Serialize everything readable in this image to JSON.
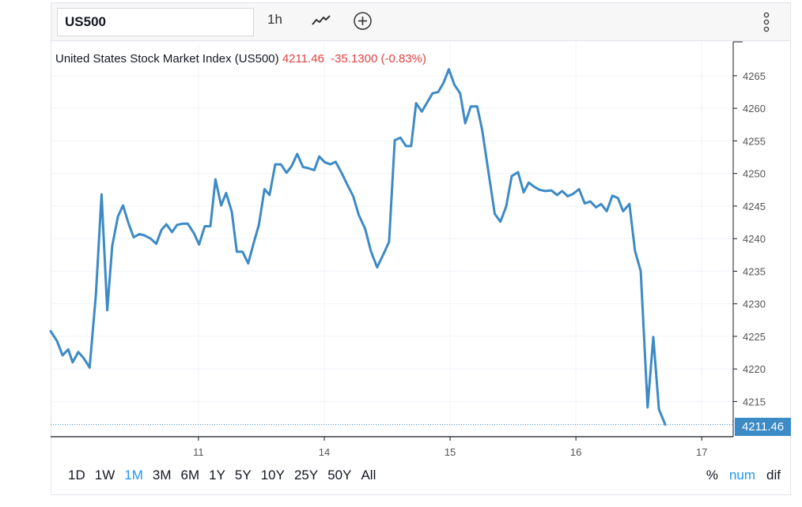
{
  "toolbar": {
    "symbol_value": "US500",
    "interval_label": "1h",
    "chart_type_icon": "line-chart-icon",
    "compare_icon": "plus-circle-icon",
    "menu_icon": "more-vertical-icon"
  },
  "legend": {
    "name": "United States Stock Market Index (US500)",
    "price": "4211.46",
    "change": "-35.1300 (-0.83%)"
  },
  "last_price_label": "4211.46",
  "ranges": [
    "1D",
    "1W",
    "1M",
    "3M",
    "6M",
    "1Y",
    "5Y",
    "10Y",
    "25Y",
    "50Y",
    "All"
  ],
  "active_range": "1M",
  "scales": [
    "%",
    "num",
    "dif"
  ],
  "active_scale": "num",
  "colors": {
    "line": "#3c8ac6",
    "change_negative": "#e0413f",
    "active": "#2196f3",
    "grid": "#f0f3fa"
  },
  "chart_data": {
    "type": "line",
    "title": "United States Stock Market Index (US500)",
    "xlabel": "",
    "ylabel": "",
    "x_ticks": [
      {
        "label": "11",
        "x": 2.35
      },
      {
        "label": "14",
        "x": 4.35
      },
      {
        "label": "15",
        "x": 6.35
      },
      {
        "label": "16",
        "x": 8.35
      },
      {
        "label": "17",
        "x": 10.35
      }
    ],
    "y_ticks": [
      4215,
      4220,
      4225,
      4230,
      4235,
      4240,
      4245,
      4250,
      4255,
      4260,
      4265
    ],
    "ylim": [
      4209.6,
      4270.2
    ],
    "xlim": [
      0,
      10.85
    ],
    "grid": true,
    "series": [
      {
        "values": [
          [
            0.0,
            4225.8
          ],
          [
            0.1,
            4224.3
          ],
          [
            0.19,
            4222.1
          ],
          [
            0.28,
            4223.0
          ],
          [
            0.35,
            4221.0
          ],
          [
            0.44,
            4222.6
          ],
          [
            0.53,
            4221.6
          ],
          [
            0.62,
            4220.2
          ],
          [
            0.72,
            4231.5
          ],
          [
            0.81,
            4246.8
          ],
          [
            0.9,
            4229.0
          ],
          [
            0.98,
            4238.9
          ],
          [
            1.07,
            4243.4
          ],
          [
            1.15,
            4245.1
          ],
          [
            1.24,
            4242.3
          ],
          [
            1.32,
            4240.2
          ],
          [
            1.41,
            4240.7
          ],
          [
            1.49,
            4240.5
          ],
          [
            1.59,
            4240.0
          ],
          [
            1.68,
            4239.2
          ],
          [
            1.76,
            4241.3
          ],
          [
            1.84,
            4242.2
          ],
          [
            1.93,
            4241.0
          ],
          [
            2.01,
            4242.1
          ],
          [
            2.1,
            4242.3
          ],
          [
            2.18,
            4242.3
          ],
          [
            2.28,
            4240.8
          ],
          [
            2.36,
            4239.1
          ],
          [
            2.45,
            4241.9
          ],
          [
            2.54,
            4241.9
          ],
          [
            2.62,
            4249.1
          ],
          [
            2.71,
            4245.1
          ],
          [
            2.79,
            4247.0
          ],
          [
            2.88,
            4244.1
          ],
          [
            2.96,
            4238.0
          ],
          [
            3.05,
            4238.0
          ],
          [
            3.14,
            4236.2
          ],
          [
            3.23,
            4239.4
          ],
          [
            3.31,
            4242.1
          ],
          [
            3.4,
            4247.6
          ],
          [
            3.48,
            4246.7
          ],
          [
            3.57,
            4251.4
          ],
          [
            3.66,
            4251.4
          ],
          [
            3.75,
            4250.1
          ],
          [
            3.83,
            4251.1
          ],
          [
            3.92,
            4253.0
          ],
          [
            4.01,
            4251.0
          ],
          [
            4.1,
            4250.8
          ],
          [
            4.19,
            4250.5
          ],
          [
            4.27,
            4252.6
          ],
          [
            4.36,
            4251.7
          ],
          [
            4.45,
            4251.4
          ],
          [
            4.53,
            4251.8
          ],
          [
            4.63,
            4250.0
          ],
          [
            4.72,
            4248.2
          ],
          [
            4.81,
            4246.5
          ],
          [
            4.9,
            4243.6
          ],
          [
            5.0,
            4241.5
          ],
          [
            5.09,
            4238.1
          ],
          [
            5.19,
            4235.6
          ],
          [
            5.28,
            4237.4
          ],
          [
            5.38,
            4239.5
          ],
          [
            5.47,
            4255.1
          ],
          [
            5.56,
            4255.5
          ],
          [
            5.65,
            4254.2
          ],
          [
            5.73,
            4254.2
          ],
          [
            5.81,
            4260.8
          ],
          [
            5.9,
            4259.5
          ],
          [
            5.98,
            4260.8
          ],
          [
            6.07,
            4262.3
          ],
          [
            6.16,
            4262.5
          ],
          [
            6.25,
            4264.0
          ],
          [
            6.33,
            4266.0
          ],
          [
            6.42,
            4263.6
          ],
          [
            6.51,
            4262.3
          ],
          [
            6.59,
            4257.7
          ],
          [
            6.68,
            4260.3
          ],
          [
            6.78,
            4260.3
          ],
          [
            6.86,
            4256.7
          ],
          [
            6.96,
            4250.2
          ],
          [
            7.06,
            4243.8
          ],
          [
            7.15,
            4242.6
          ],
          [
            7.24,
            4244.9
          ],
          [
            7.33,
            4249.6
          ],
          [
            7.43,
            4250.2
          ],
          [
            7.52,
            4247.1
          ],
          [
            7.6,
            4248.6
          ],
          [
            7.68,
            4248.0
          ],
          [
            7.77,
            4247.5
          ],
          [
            7.86,
            4247.3
          ],
          [
            7.96,
            4247.4
          ],
          [
            8.05,
            4246.7
          ],
          [
            8.13,
            4247.3
          ],
          [
            8.22,
            4246.5
          ],
          [
            8.31,
            4246.9
          ],
          [
            8.4,
            4247.6
          ],
          [
            8.49,
            4245.4
          ],
          [
            8.58,
            4245.7
          ],
          [
            8.67,
            4244.8
          ],
          [
            8.75,
            4245.3
          ],
          [
            8.84,
            4244.2
          ],
          [
            8.93,
            4246.6
          ],
          [
            9.02,
            4246.2
          ],
          [
            9.1,
            4244.2
          ],
          [
            9.2,
            4245.3
          ],
          [
            9.29,
            4238.1
          ],
          [
            9.38,
            4235.0
          ],
          [
            9.49,
            4214.1
          ],
          [
            9.58,
            4224.9
          ],
          [
            9.67,
            4213.8
          ],
          [
            9.77,
            4211.46
          ]
        ]
      }
    ]
  }
}
